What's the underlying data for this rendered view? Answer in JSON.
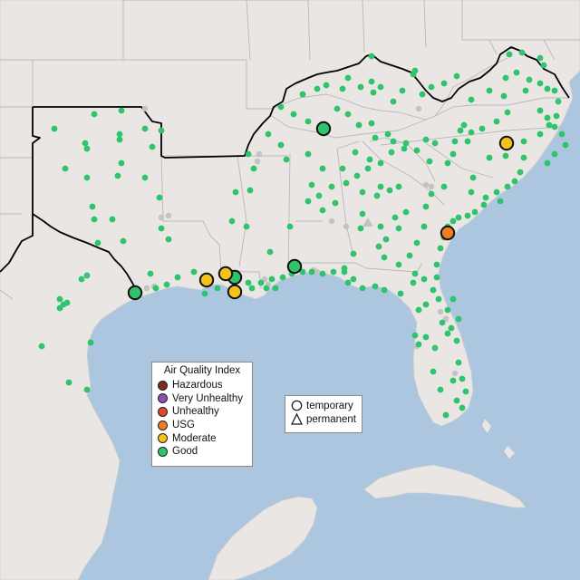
{
  "legend": {
    "title": "Air Quality Index",
    "categories": [
      {
        "label": "Hazardous",
        "color": "#7e2a1f"
      },
      {
        "label": "Very Unhealthy",
        "color": "#8e4fb0"
      },
      {
        "label": "Unhealthy",
        "color": "#e3472e"
      },
      {
        "label": "USG",
        "color": "#ee7d23"
      },
      {
        "label": "Moderate",
        "color": "#f5c21b"
      },
      {
        "label": "Good",
        "color": "#2dc46c"
      }
    ]
  },
  "type_legend": {
    "items": [
      {
        "label": "temporary",
        "icon": "circle-icon"
      },
      {
        "label": "permanent",
        "icon": "triangle-icon"
      }
    ]
  },
  "colors": {
    "water": "#abc6de",
    "land": "#e9e6e3",
    "border": "#b9b9b9",
    "region_outline": "#000000",
    "inactive_site": "#c3c3c3"
  }
}
